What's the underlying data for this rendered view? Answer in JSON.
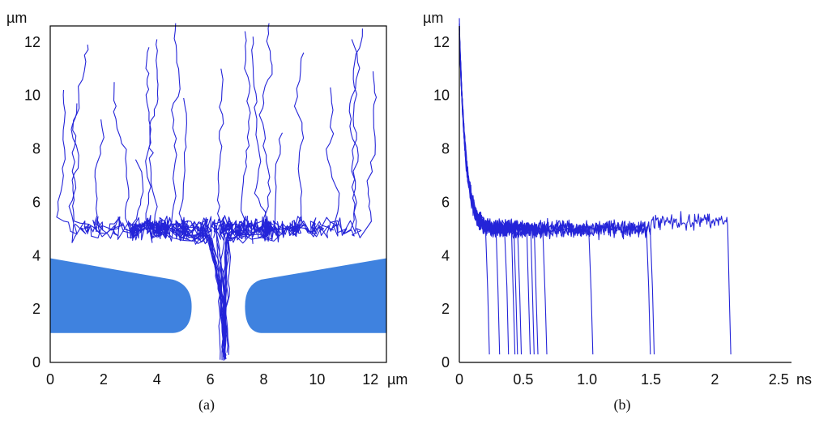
{
  "colors": {
    "trajectory": "#2424d8",
    "channel_wall": "#3f82df",
    "axis": "#000000"
  },
  "chart_data": [
    {
      "panel_label": "(a)",
      "type": "line",
      "x_unit": "µm",
      "y_unit": "µm",
      "xlim": [
        0,
        12.6
      ],
      "ylim": [
        0,
        12.6
      ],
      "x_ticks": [
        0,
        2,
        4,
        6,
        8,
        10,
        12
      ],
      "y_ticks": [
        0,
        2,
        4,
        6,
        8,
        10,
        12
      ],
      "grid": false,
      "description_series_count": 20,
      "walls": [
        {
          "name": "",
          "points": [
            [
              0,
              3.9
            ],
            [
              4.6,
              3.1
            ],
            [
              5.3,
              2.1
            ],
            [
              4.6,
              1.1
            ],
            [
              0,
              1.1
            ]
          ]
        },
        {
          "name": "",
          "points": [
            [
              12.6,
              3.9
            ],
            [
              7.9,
              3.1
            ],
            [
              7.3,
              2.1
            ],
            [
              7.9,
              1.1
            ],
            [
              12.6,
              1.1
            ]
          ]
        }
      ],
      "trajectory_starts_x": [
        0.5,
        1.0,
        1.4,
        1.9,
        2.4,
        3.2,
        3.7,
        4.0,
        4.7,
        5.0,
        6.4,
        7.3,
        7.6,
        8.2,
        8.7,
        9.5,
        10.5,
        11.3,
        11.7,
        12.1
      ],
      "trajectory_starts_y": [
        10.2,
        9.7,
        11.9,
        9.1,
        10.5,
        7.6,
        11.8,
        12.1,
        12.7,
        9.9,
        11.0,
        12.4,
        12.2,
        12.7,
        8.6,
        11.6,
        10.3,
        12.1,
        12.5,
        10.9
      ],
      "cluster_y": 5.0,
      "exit_y": 0.3
    },
    {
      "panel_label": "(b)",
      "type": "line",
      "x_unit": "ns",
      "y_unit": "µm",
      "xlim": [
        0,
        2.6
      ],
      "ylim": [
        0,
        12.6
      ],
      "x_ticks": [
        0,
        0.5,
        1.0,
        1.5,
        2,
        2.5
      ],
      "x_tick_labels": [
        "0",
        "0.5",
        "1.0",
        "1.5",
        "2",
        "2.5"
      ],
      "y_ticks": [
        0,
        2,
        4,
        6,
        8,
        10,
        12
      ],
      "grid": false,
      "start_y": 12.5,
      "plateau_y": 5.0,
      "exit_times_ns": [
        0.21,
        0.29,
        0.36,
        0.41,
        0.43,
        0.46,
        0.53,
        0.56,
        0.59,
        0.66,
        1.02,
        1.47,
        1.5,
        2.1
      ],
      "end_y": 0.3
    }
  ]
}
